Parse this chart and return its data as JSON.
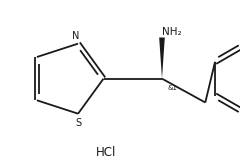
{
  "background_color": "#ffffff",
  "line_color": "#1a1a1a",
  "text_color": "#1a1a1a",
  "hcl_label": "HCl",
  "nh2_label": "NH₂",
  "stereo_label": "&1",
  "n_label": "N",
  "s_label": "S",
  "figsize": [
    2.46,
    1.66
  ],
  "dpi": 100,
  "lw": 1.3
}
